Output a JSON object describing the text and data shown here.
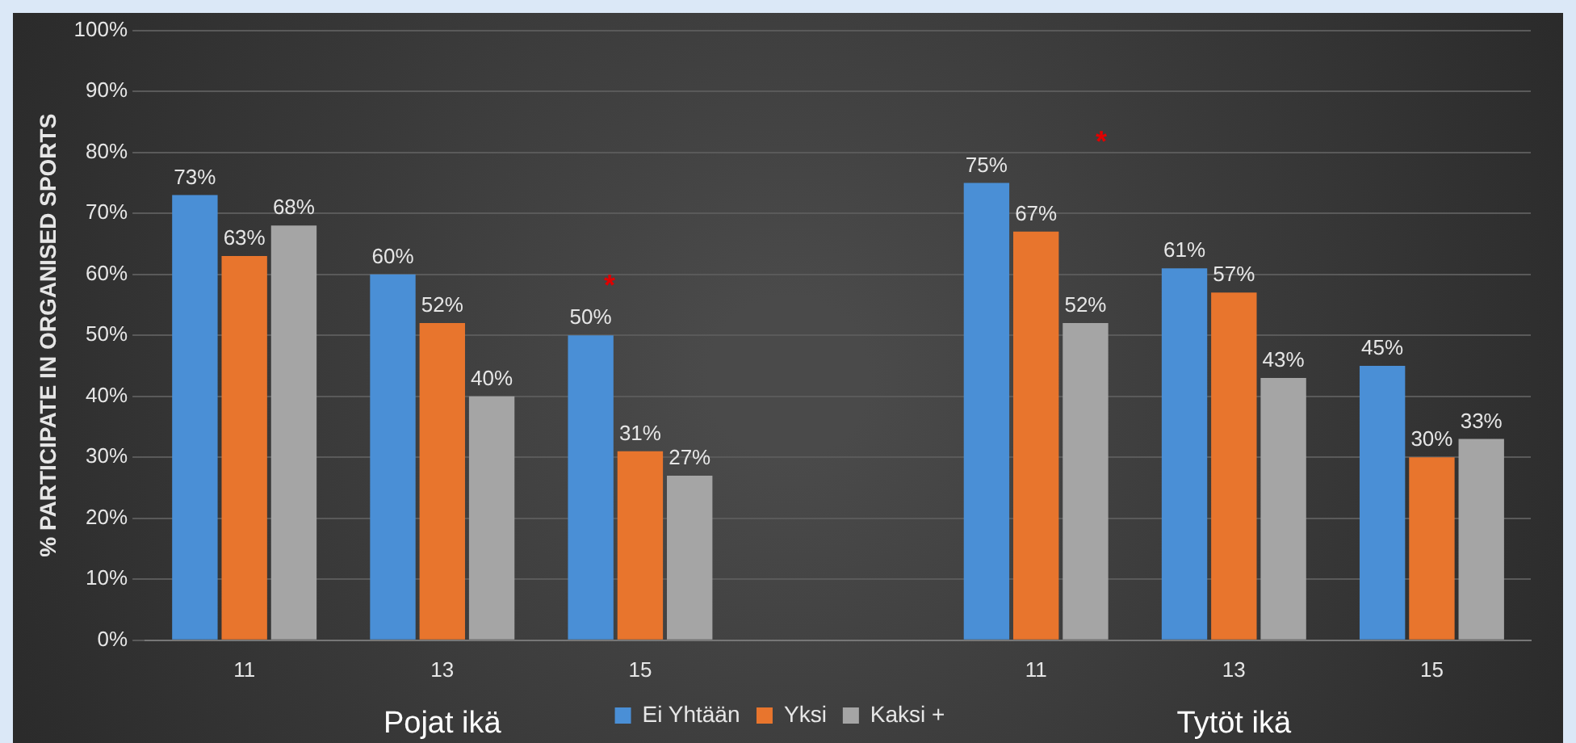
{
  "chart_data": {
    "type": "bar",
    "categories": [
      "11",
      "13",
      "15",
      null,
      "11",
      "13",
      "15"
    ],
    "series": [
      {
        "name": "Ei Yhtään",
        "color": "#4a8fd6",
        "values": [
          73,
          60,
          50,
          null,
          75,
          61,
          45
        ],
        "value_labels": [
          "73%",
          "60%",
          "50%",
          null,
          "75%",
          "61%",
          "45%"
        ]
      },
      {
        "name": "Yksi",
        "color": "#e8752d",
        "values": [
          63,
          52,
          31,
          null,
          67,
          57,
          30
        ],
        "value_labels": [
          "63%",
          "52%",
          "31%",
          null,
          "67%",
          "57%",
          "30%"
        ]
      },
      {
        "name": "Kaksi +",
        "color": "#a5a5a5",
        "values": [
          68,
          40,
          27,
          null,
          52,
          43,
          33
        ],
        "value_labels": [
          "68%",
          "40%",
          "27%",
          null,
          "52%",
          "43%",
          "33%"
        ]
      }
    ],
    "ylabel": "% PARTICIPATE IN ORGANISED SPORTS",
    "ylim": [
      0,
      100
    ],
    "yticks": [
      {
        "value": 0,
        "label": "0%"
      },
      {
        "value": 10,
        "label": "10%"
      },
      {
        "value": 20,
        "label": "20%"
      },
      {
        "value": 30,
        "label": "30%"
      },
      {
        "value": 40,
        "label": "40%"
      },
      {
        "value": 50,
        "label": "50%"
      },
      {
        "value": 60,
        "label": "60%"
      },
      {
        "value": 70,
        "label": "70%"
      },
      {
        "value": 80,
        "label": "80%"
      },
      {
        "value": 90,
        "label": "90%"
      },
      {
        "value": 100,
        "label": "100%"
      }
    ],
    "grid": "y",
    "legend": "bottom",
    "annotations": [
      "Pojat ikä",
      "Tytöt ikä",
      "*",
      "*"
    ]
  }
}
